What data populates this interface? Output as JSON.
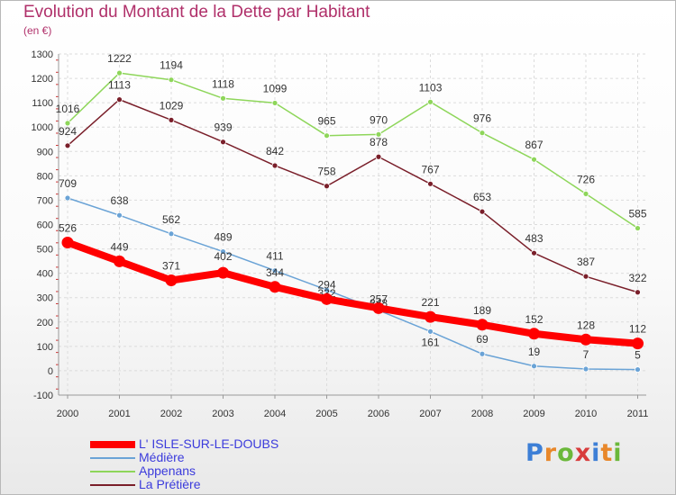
{
  "header": {
    "title": "Evolution du Montant de la Dette par Habitant",
    "unit": "(en €)"
  },
  "logo": {
    "letters": [
      "P",
      "r",
      "o",
      "x",
      "i",
      "t",
      "i"
    ],
    "colors": [
      "#3d7fd6",
      "#e8872a",
      "#6bb83a",
      "#d83c3c",
      "#3d7fd6",
      "#e8872a",
      "#6bb83a"
    ]
  },
  "chart_data": {
    "type": "line",
    "title": "Evolution du Montant de la Dette par Habitant",
    "ylabel": "(en €)",
    "xlabel": "",
    "ylim": [
      -100,
      1300
    ],
    "yticks": [
      -100,
      0,
      100,
      200,
      300,
      400,
      500,
      600,
      700,
      800,
      900,
      1000,
      1100,
      1200,
      1300
    ],
    "categories": [
      "2000",
      "2001",
      "2002",
      "2003",
      "2004",
      "2005",
      "2006",
      "2007",
      "2008",
      "2009",
      "2010",
      "2011"
    ],
    "grid": true,
    "legend_position": "bottom-left",
    "series": [
      {
        "name": "L' ISLE-SUR-LE-DOUBS",
        "color": "#ff0000",
        "values": [
          526,
          449,
          371,
          402,
          344,
          294,
          257,
          221,
          189,
          152,
          128,
          112
        ],
        "labels": [
          "526",
          "449",
          "371",
          "402",
          "344",
          "294",
          "257",
          "221",
          "189",
          "152",
          "128",
          "112"
        ]
      },
      {
        "name": "Médière",
        "color": "#6aa3d6",
        "values": [
          709,
          638,
          562,
          489,
          411,
          332,
          248,
          161,
          69,
          19,
          7,
          5
        ],
        "labels": [
          "709",
          "638",
          "562",
          "489",
          "411",
          "332",
          "248",
          "161",
          "69",
          "19",
          "7",
          "5"
        ]
      },
      {
        "name": "Appenans",
        "color": "#8ed65a",
        "values": [
          1016,
          1222,
          1194,
          1118,
          1099,
          965,
          970,
          1103,
          976,
          867,
          726,
          585
        ],
        "labels": [
          "1016",
          "1222",
          "1194",
          "1118",
          "1099",
          "965",
          "970",
          "1103",
          "976",
          "867",
          "726",
          "585"
        ]
      },
      {
        "name": "La Prétière",
        "color": "#7a1f2a",
        "values": [
          924,
          1113,
          1029,
          939,
          842,
          758,
          878,
          767,
          653,
          483,
          387,
          322
        ],
        "labels": [
          "924",
          "1113",
          "1029",
          "939",
          "842",
          "758",
          "878",
          "767",
          "653",
          "483",
          "387",
          "322"
        ]
      }
    ]
  }
}
